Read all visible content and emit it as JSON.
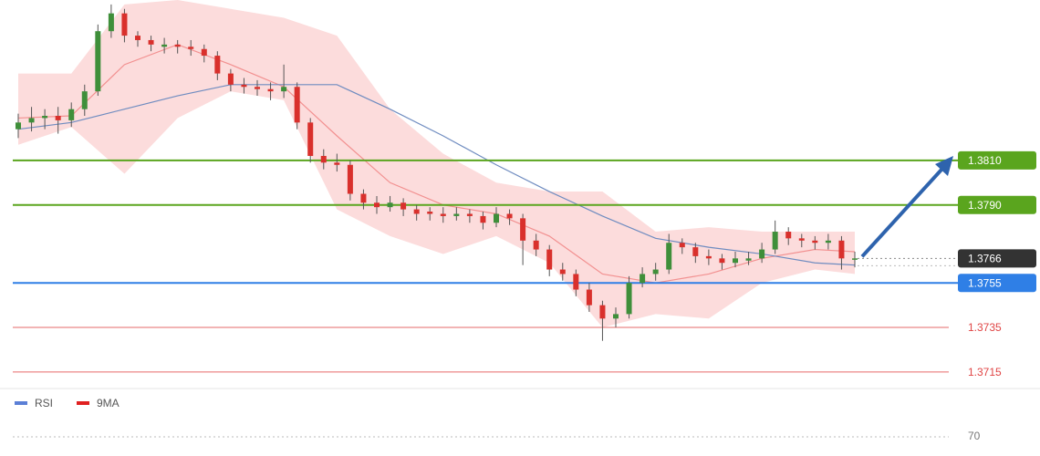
{
  "chart_data": {
    "type": "candlestick",
    "ylim": [
      1.3708,
      1.3882
    ],
    "xlim": [
      0,
      63
    ],
    "up_color": "#3f8f3a",
    "down_color": "#d9302c",
    "candles": [
      [
        1.3824,
        1.3831,
        1.382,
        1.3827
      ],
      [
        1.3827,
        1.3834,
        1.3823,
        1.3829
      ],
      [
        1.3829,
        1.3833,
        1.3824,
        1.383
      ],
      [
        1.383,
        1.3834,
        1.3822,
        1.3828
      ],
      [
        1.3828,
        1.3836,
        1.3825,
        1.3833
      ],
      [
        1.3833,
        1.3844,
        1.383,
        1.3841
      ],
      [
        1.3841,
        1.3871,
        1.3839,
        1.3868
      ],
      [
        1.3868,
        1.388,
        1.3865,
        1.3876
      ],
      [
        1.3876,
        1.3878,
        1.3863,
        1.3866
      ],
      [
        1.3866,
        1.3868,
        1.3861,
        1.3864
      ],
      [
        1.3864,
        1.3866,
        1.3859,
        1.3862
      ],
      [
        1.3861,
        1.3865,
        1.3858,
        1.3862
      ],
      [
        1.3862,
        1.3864,
        1.3858,
        1.3861
      ],
      [
        1.3861,
        1.3864,
        1.3857,
        1.386
      ],
      [
        1.386,
        1.3862,
        1.3854,
        1.3857
      ],
      [
        1.3857,
        1.3859,
        1.3846,
        1.3849
      ],
      [
        1.3849,
        1.3851,
        1.3841,
        1.3844
      ],
      [
        1.3844,
        1.3847,
        1.384,
        1.3843
      ],
      [
        1.3843,
        1.3846,
        1.3839,
        1.3842
      ],
      [
        1.3842,
        1.3845,
        1.3837,
        1.3841
      ],
      [
        1.3841,
        1.3853,
        1.3838,
        1.3843
      ],
      [
        1.3843,
        1.3845,
        1.3824,
        1.3827
      ],
      [
        1.3827,
        1.3829,
        1.3809,
        1.3812
      ],
      [
        1.3812,
        1.3815,
        1.3806,
        1.3809
      ],
      [
        1.3809,
        1.3813,
        1.3805,
        1.3808
      ],
      [
        1.3808,
        1.381,
        1.3792,
        1.3795
      ],
      [
        1.3795,
        1.3797,
        1.3788,
        1.3791
      ],
      [
        1.3791,
        1.3794,
        1.3786,
        1.3789
      ],
      [
        1.3789,
        1.3794,
        1.3787,
        1.3791
      ],
      [
        1.3791,
        1.3793,
        1.3785,
        1.3788
      ],
      [
        1.3788,
        1.379,
        1.3783,
        1.3786
      ],
      [
        1.3787,
        1.3789,
        1.3783,
        1.3786
      ],
      [
        1.3786,
        1.3789,
        1.3782,
        1.3785
      ],
      [
        1.3785,
        1.3789,
        1.3783,
        1.3786
      ],
      [
        1.3786,
        1.3788,
        1.3782,
        1.3785
      ],
      [
        1.3785,
        1.3787,
        1.3779,
        1.3782
      ],
      [
        1.3782,
        1.3789,
        1.378,
        1.3786
      ],
      [
        1.3786,
        1.3788,
        1.3781,
        1.3784
      ],
      [
        1.3784,
        1.3786,
        1.3763,
        1.3774
      ],
      [
        1.3774,
        1.3777,
        1.3767,
        1.377
      ],
      [
        1.377,
        1.3772,
        1.3758,
        1.3761
      ],
      [
        1.3761,
        1.3764,
        1.3756,
        1.3759
      ],
      [
        1.3759,
        1.3761,
        1.3749,
        1.3752
      ],
      [
        1.3752,
        1.3755,
        1.3742,
        1.3745
      ],
      [
        1.3745,
        1.3747,
        1.3729,
        1.3739
      ],
      [
        1.3739,
        1.3744,
        1.3735,
        1.3741
      ],
      [
        1.3741,
        1.3758,
        1.3739,
        1.3755
      ],
      [
        1.3755,
        1.3762,
        1.3753,
        1.3759
      ],
      [
        1.3759,
        1.3764,
        1.3756,
        1.3761
      ],
      [
        1.3761,
        1.3777,
        1.3759,
        1.3773
      ],
      [
        1.3773,
        1.3775,
        1.3768,
        1.3771
      ],
      [
        1.3771,
        1.3773,
        1.3764,
        1.3767
      ],
      [
        1.3767,
        1.377,
        1.3763,
        1.3766
      ],
      [
        1.3766,
        1.3768,
        1.3761,
        1.3764
      ],
      [
        1.3764,
        1.3769,
        1.3762,
        1.3766
      ],
      [
        1.3765,
        1.3769,
        1.3763,
        1.3766
      ],
      [
        1.3766,
        1.3773,
        1.3764,
        1.377
      ],
      [
        1.377,
        1.3783,
        1.3768,
        1.3778
      ],
      [
        1.3778,
        1.378,
        1.3772,
        1.3775
      ],
      [
        1.3775,
        1.3777,
        1.3771,
        1.3774
      ],
      [
        1.3774,
        1.3776,
        1.377,
        1.3773
      ],
      [
        1.3773,
        1.3777,
        1.377,
        1.3774
      ],
      [
        1.3774,
        1.3776,
        1.3761,
        1.3766
      ],
      [
        1.3766,
        1.3769,
        1.3762,
        1.3766
      ]
    ],
    "overlay_x": [
      0,
      4,
      8,
      12,
      16,
      20,
      24,
      28,
      32,
      36,
      40,
      44,
      48,
      52,
      56,
      60,
      63
    ],
    "band": {
      "color": "#fbd0d0",
      "upper": [
        1.3849,
        1.3849,
        1.388,
        1.3882,
        1.3878,
        1.3874,
        1.3866,
        1.3833,
        1.3813,
        1.38,
        1.3796,
        1.3796,
        1.3778,
        1.378,
        1.3778,
        1.3778,
        1.3778
      ],
      "lower": [
        1.3817,
        1.3825,
        1.3804,
        1.3829,
        1.3841,
        1.3837,
        1.3788,
        1.3776,
        1.3768,
        1.3776,
        1.3764,
        1.3735,
        1.3741,
        1.3739,
        1.3755,
        1.3761,
        1.3759
      ]
    },
    "ma_slow": {
      "color": "#6f8cc0",
      "values": [
        1.3824,
        1.3827,
        1.3833,
        1.3839,
        1.3844,
        1.3844,
        1.3844,
        1.3833,
        1.3821,
        1.3808,
        1.3796,
        1.3785,
        1.3775,
        1.3771,
        1.3768,
        1.3764,
        1.3763
      ]
    },
    "ma_fast": {
      "color": "#f29090",
      "values": [
        1.3829,
        1.383,
        1.3853,
        1.3862,
        1.3853,
        1.3843,
        1.3821,
        1.38,
        1.379,
        1.3786,
        1.3776,
        1.3759,
        1.3755,
        1.3759,
        1.3766,
        1.377,
        1.3769
      ]
    },
    "levels": [
      {
        "value": 1.381,
        "label": "1.3810",
        "color": "#5aa51e",
        "boxed": true
      },
      {
        "value": 1.379,
        "label": "1.3790",
        "color": "#5aa51e",
        "boxed": true
      },
      {
        "value": 1.3755,
        "label": "1.3755",
        "color": "#2f7fe6",
        "boxed": true
      },
      {
        "value": 1.3735,
        "label": "1.3735",
        "color": "#e04545",
        "boxed": false
      },
      {
        "value": 1.3715,
        "label": "1.3715",
        "color": "#e04545",
        "boxed": false
      }
    ],
    "current": {
      "value": 1.3766,
      "label": "1.3766",
      "color": "#333333"
    },
    "indicator": {
      "legend": [
        {
          "name": "RSI",
          "color": "#5b7fd6"
        },
        {
          "name": "9MA",
          "color": "#e02020"
        }
      ],
      "ylim": [
        0,
        100
      ],
      "yticks": [
        70
      ]
    }
  }
}
